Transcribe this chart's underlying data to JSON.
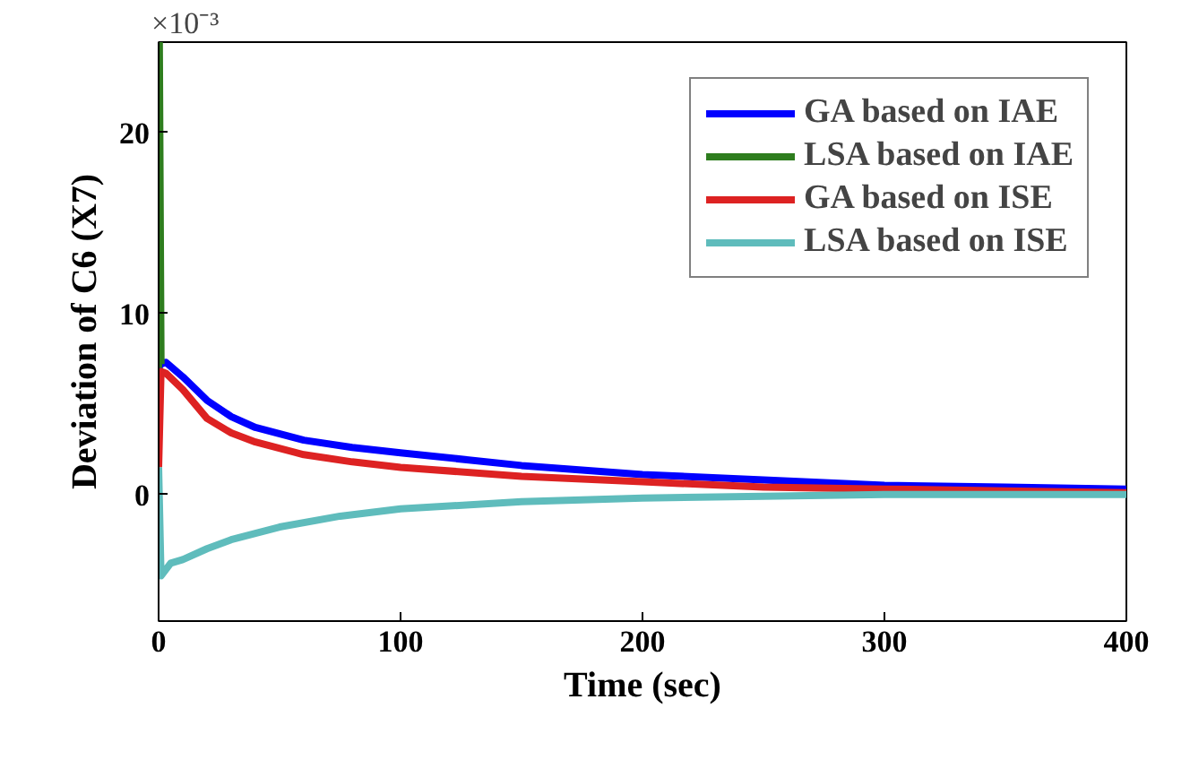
{
  "chart_data": {
    "type": "line",
    "xlabel": "Time (sec)",
    "ylabel": "Deviation of C6 (X7)",
    "annotations": [
      "×10⁻³"
    ],
    "xlim": [
      0,
      400
    ],
    "xticks": [
      0,
      100,
      200,
      300,
      400
    ],
    "ylim": [
      -7,
      25
    ],
    "yticks": [
      0,
      10,
      20
    ],
    "grid": false,
    "legend": "top right",
    "marker": "none",
    "line_style": "solid",
    "series": [
      {
        "name": "GA based on IAE",
        "color": "#0000ff",
        "x": [
          0,
          1,
          3,
          10,
          20,
          30,
          40,
          60,
          80,
          100,
          150,
          200,
          250,
          300,
          350,
          400
        ],
        "values": [
          7,
          7.2,
          7.3,
          6.5,
          5.2,
          4.3,
          3.7,
          3.0,
          2.6,
          2.3,
          1.6,
          1.1,
          0.8,
          0.5,
          0.4,
          0.3
        ]
      },
      {
        "name": "LSA based on IAE",
        "color": "#2e7d1e",
        "x": [
          0,
          0.3,
          1
        ],
        "values": [
          7,
          25,
          7.2
        ]
      },
      {
        "name": "GA based on ISE",
        "color": "#dd2222",
        "x": [
          0,
          1,
          3,
          10,
          20,
          30,
          40,
          60,
          80,
          100,
          150,
          200,
          250,
          300,
          350,
          400
        ],
        "values": [
          1.5,
          6.8,
          6.7,
          5.8,
          4.2,
          3.4,
          2.9,
          2.2,
          1.8,
          1.5,
          1.0,
          0.7,
          0.4,
          0.3,
          0.2,
          0.1
        ]
      },
      {
        "name": "LSA based on ISE",
        "color": "#5fbcbc",
        "x": [
          0,
          1,
          5,
          10,
          20,
          30,
          50,
          75,
          100,
          150,
          200,
          250,
          300,
          400
        ],
        "values": [
          1.5,
          -4.5,
          -3.8,
          -3.6,
          -3.0,
          -2.5,
          -1.8,
          -1.2,
          -0.8,
          -0.4,
          -0.2,
          -0.1,
          0,
          0
        ]
      }
    ]
  }
}
